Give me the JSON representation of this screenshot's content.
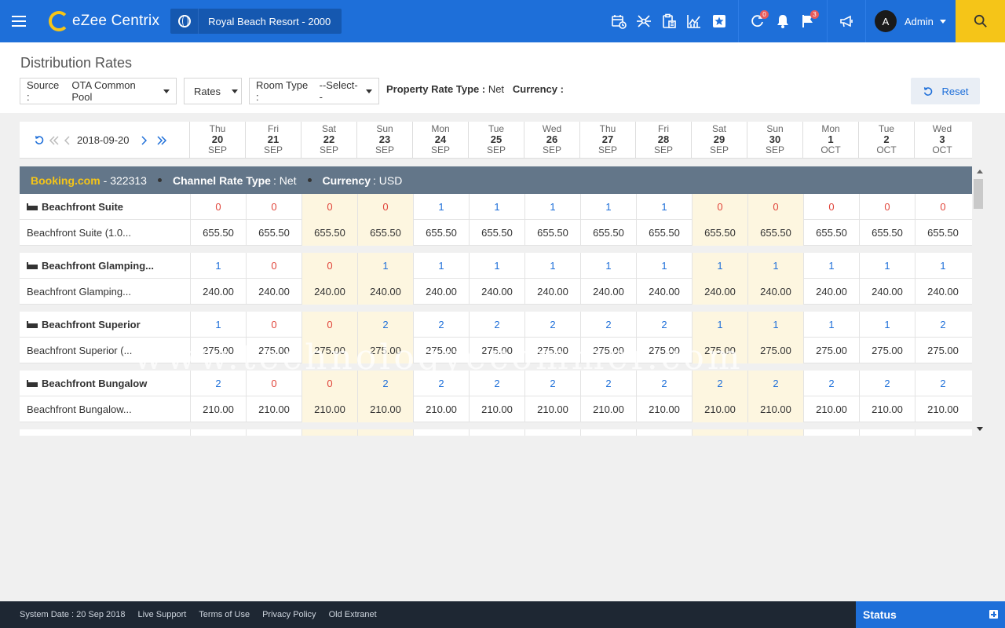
{
  "app": {
    "logo_text": "eZee Centrix",
    "property_name": "Royal Beach Resort - 2000",
    "user_initial": "A",
    "user_name": "Admin",
    "badges": {
      "refresh": "0",
      "flag": "3"
    }
  },
  "page": {
    "title": "Distribution Rates",
    "filters": {
      "source_label": "Source :",
      "source_value": "OTA Common Pool",
      "rates_value": "Rates",
      "room_type_label": "Room Type :",
      "room_type_value": "--Select--"
    },
    "property_rate_type_label": "Property Rate Type :",
    "property_rate_type_value": "Net",
    "currency_label": "Currency :",
    "reset_label": "Reset"
  },
  "grid": {
    "nav_date": "2018-09-20",
    "days": [
      {
        "dow": "Thu",
        "day": "20",
        "mon": "SEP",
        "weekend": false
      },
      {
        "dow": "Fri",
        "day": "21",
        "mon": "SEP",
        "weekend": false
      },
      {
        "dow": "Sat",
        "day": "22",
        "mon": "SEP",
        "weekend": true
      },
      {
        "dow": "Sun",
        "day": "23",
        "mon": "SEP",
        "weekend": true
      },
      {
        "dow": "Mon",
        "day": "24",
        "mon": "SEP",
        "weekend": false
      },
      {
        "dow": "Tue",
        "day": "25",
        "mon": "SEP",
        "weekend": false
      },
      {
        "dow": "Wed",
        "day": "26",
        "mon": "SEP",
        "weekend": false
      },
      {
        "dow": "Thu",
        "day": "27",
        "mon": "SEP",
        "weekend": false
      },
      {
        "dow": "Fri",
        "day": "28",
        "mon": "SEP",
        "weekend": false
      },
      {
        "dow": "Sat",
        "day": "29",
        "mon": "SEP",
        "weekend": true
      },
      {
        "dow": "Sun",
        "day": "30",
        "mon": "SEP",
        "weekend": true
      },
      {
        "dow": "Mon",
        "day": "1",
        "mon": "OCT",
        "weekend": false
      },
      {
        "dow": "Tue",
        "day": "2",
        "mon": "OCT",
        "weekend": false
      },
      {
        "dow": "Wed",
        "day": "3",
        "mon": "OCT",
        "weekend": false
      }
    ],
    "channel": {
      "name": "Booking.com",
      "id": "- 322313",
      "rate_type_label": "Channel Rate Type",
      "rate_type_value": ": Net",
      "currency_label": "Currency",
      "currency_value": ": USD"
    },
    "rooms": [
      {
        "name": "Beachfront Suite",
        "plan": "Beachfront Suite (1.0...",
        "availability": [
          "0",
          "0",
          "0",
          "0",
          "1",
          "1",
          "1",
          "1",
          "1",
          "0",
          "0",
          "0",
          "0",
          "0"
        ],
        "rates": [
          "655.50",
          "655.50",
          "655.50",
          "655.50",
          "655.50",
          "655.50",
          "655.50",
          "655.50",
          "655.50",
          "655.50",
          "655.50",
          "655.50",
          "655.50",
          "655.50"
        ]
      },
      {
        "name": "Beachfront Glamping...",
        "plan": "Beachfront Glamping...",
        "availability": [
          "1",
          "0",
          "0",
          "1",
          "1",
          "1",
          "1",
          "1",
          "1",
          "1",
          "1",
          "1",
          "1",
          "1"
        ],
        "rates": [
          "240.00",
          "240.00",
          "240.00",
          "240.00",
          "240.00",
          "240.00",
          "240.00",
          "240.00",
          "240.00",
          "240.00",
          "240.00",
          "240.00",
          "240.00",
          "240.00"
        ]
      },
      {
        "name": "Beachfront Superior",
        "plan": "Beachfront Superior (...",
        "availability": [
          "1",
          "0",
          "0",
          "2",
          "2",
          "2",
          "2",
          "2",
          "2",
          "1",
          "1",
          "1",
          "1",
          "2"
        ],
        "rates": [
          "275.00",
          "275.00",
          "275.00",
          "275.00",
          "275.00",
          "275.00",
          "275.00",
          "275.00",
          "275.00",
          "275.00",
          "275.00",
          "275.00",
          "275.00",
          "275.00"
        ]
      },
      {
        "name": "Beachfront Bungalow",
        "plan": "Beachfront Bungalow...",
        "availability": [
          "2",
          "0",
          "0",
          "2",
          "2",
          "2",
          "2",
          "2",
          "2",
          "2",
          "2",
          "2",
          "2",
          "2"
        ],
        "rates": [
          "210.00",
          "210.00",
          "210.00",
          "210.00",
          "210.00",
          "210.00",
          "210.00",
          "210.00",
          "210.00",
          "210.00",
          "210.00",
          "210.00",
          "210.00",
          "210.00"
        ]
      }
    ]
  },
  "watermark": "www.technologyecommer.com",
  "footer": {
    "system_date": "System Date : 20 Sep 2018",
    "links": [
      "Live Support",
      "Terms of Use",
      "Privacy Policy",
      "Old Extranet"
    ],
    "status_label": "Status"
  },
  "colors": {
    "primary": "#1e6fd9",
    "accent": "#f5c518",
    "channel_bar": "#637689",
    "zero_avail": "#e0443a",
    "weekend_bg": "#fdf6e0"
  }
}
